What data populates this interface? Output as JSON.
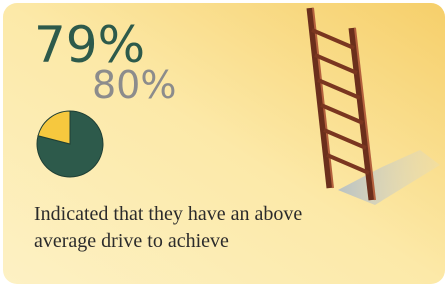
{
  "chart_data": {
    "type": "pie",
    "values": [
      79,
      21
    ],
    "value_labels": [
      "79%",
      null
    ],
    "colors": [
      "#2d5a4b",
      "#f6c83e"
    ],
    "comparison": "80%",
    "caption": [
      "Indicated that they have an above",
      "average drive to achieve"
    ]
  }
}
